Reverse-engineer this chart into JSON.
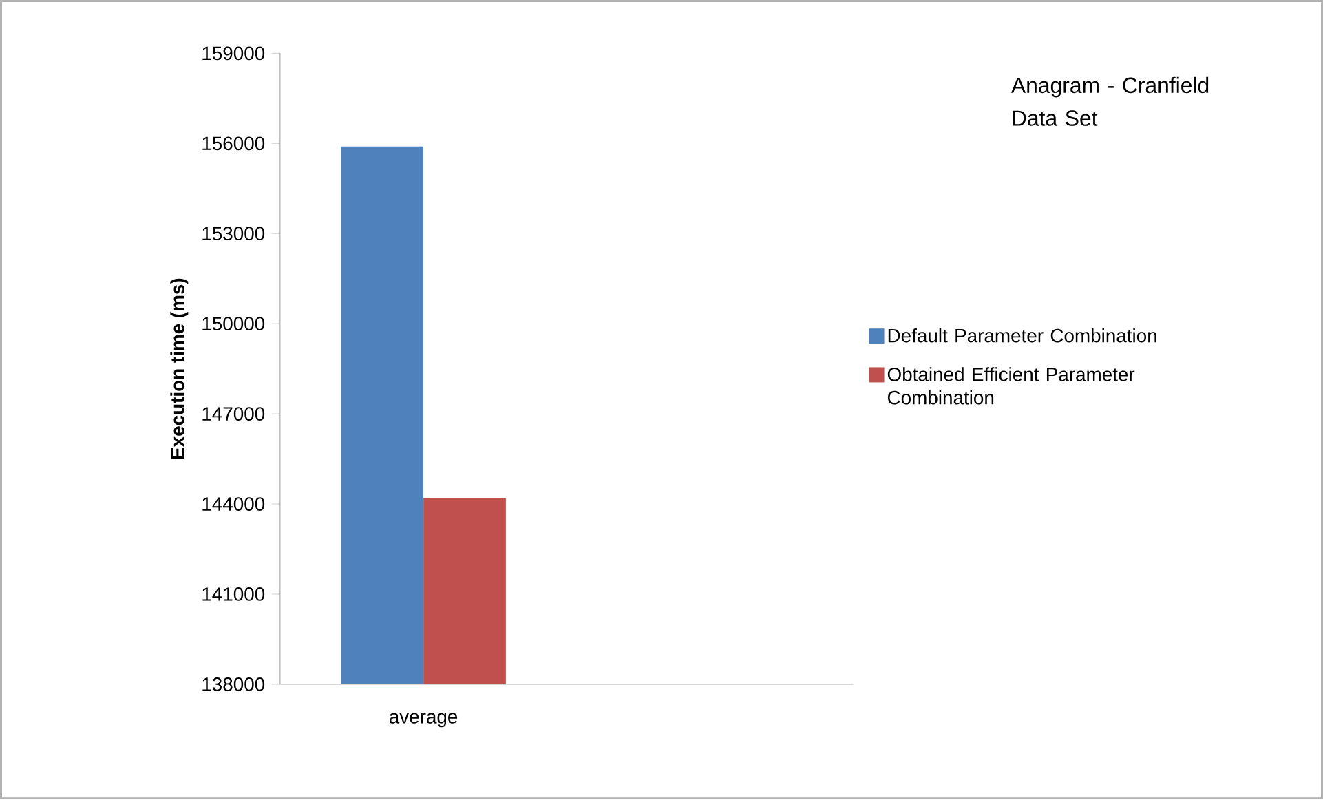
{
  "chart_data": {
    "type": "bar",
    "title": "Anagram - Cranfield Data Set",
    "ylabel": "Execution time (ms)",
    "categories": [
      "average",
      null
    ],
    "series": [
      {
        "name": "Default Parameter Combination",
        "color": "#4f81bd",
        "values": [
          155900,
          null
        ]
      },
      {
        "name": "Obtained Efficient Parameter Combination",
        "color": "#c0504d",
        "values": [
          144200,
          null
        ]
      }
    ],
    "ylim": [
      138000,
      159000
    ],
    "yticks": [
      138000,
      141000,
      144000,
      147000,
      150000,
      153000,
      156000,
      159000
    ],
    "grid": false,
    "legend": "right"
  }
}
